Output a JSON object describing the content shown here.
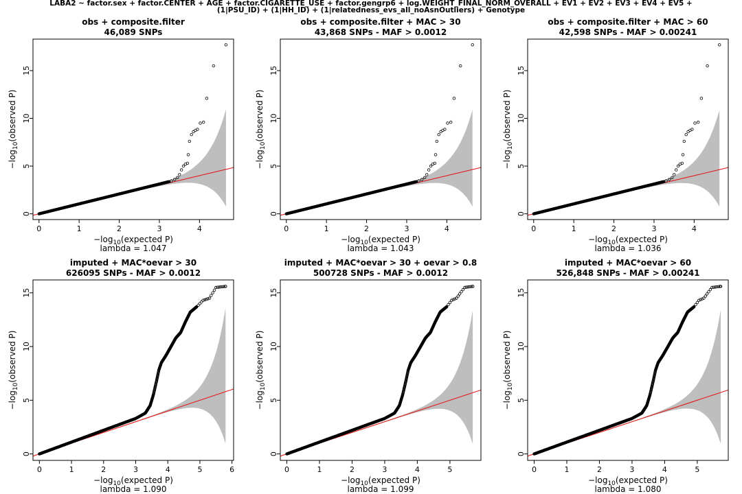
{
  "figure": {
    "title_line1": "LABA2 ~ factor.sex + factor.CENTER + AGE + factor.CIGARETTE_USE + factor.gengrp6 + log.WEIGHT_FINAL_NORM_OVERALL + EV1 + EV2 + EV3 + EV4 + EV5 +",
    "title_line2": "(1|PSU_ID) + (1|HH_ID) + (1|relatedness_evs_all_noAsnOutliers) + Genotype"
  },
  "colors": {
    "points": "#000000",
    "null_line": "#e31a1c",
    "ci_band": "#bebebe",
    "frame": "#000000"
  },
  "chart_data": [
    {
      "type": "scatter",
      "title": "obs + composite.filter",
      "subtitle": "46,089 SNPs",
      "xlabel": "-log10(expected P)",
      "ylabel": "-log10(observed P)",
      "lambda_label": "lambda = 1.047",
      "lambda": 1.047,
      "xlim": [
        -0.15,
        4.85
      ],
      "ylim": [
        -0.6,
        18.3
      ],
      "xticks": [
        0,
        1,
        2,
        3,
        4
      ],
      "yticks": [
        0,
        5,
        10,
        15
      ],
      "x_max": 4.66,
      "tail": [
        [
          3.3,
          3.45
        ],
        [
          3.38,
          3.6
        ],
        [
          3.45,
          3.8
        ],
        [
          3.5,
          4.1
        ],
        [
          3.55,
          4.6
        ],
        [
          3.6,
          5.0
        ],
        [
          3.65,
          5.2
        ],
        [
          3.7,
          5.3
        ],
        [
          3.72,
          6.2
        ],
        [
          3.75,
          7.6
        ],
        [
          3.8,
          8.3
        ],
        [
          3.85,
          8.6
        ],
        [
          3.9,
          8.75
        ],
        [
          3.95,
          8.85
        ],
        [
          4.02,
          9.5
        ],
        [
          4.1,
          9.6
        ],
        [
          4.18,
          12.1
        ],
        [
          4.35,
          15.5
        ],
        [
          4.66,
          17.7
        ]
      ]
    },
    {
      "type": "scatter",
      "title": "obs + composite.filter + MAC > 30",
      "subtitle": "43,868 SNPs - MAF > 0.0012",
      "xlabel": "-log10(expected P)",
      "ylabel": "-log10(observed P)",
      "lambda_label": "lambda = 1.043",
      "lambda": 1.043,
      "xlim": [
        -0.15,
        4.85
      ],
      "ylim": [
        -0.6,
        18.3
      ],
      "xticks": [
        0,
        1,
        2,
        3,
        4
      ],
      "yticks": [
        0,
        5,
        10,
        15
      ],
      "x_max": 4.64,
      "tail": [
        [
          3.3,
          3.45
        ],
        [
          3.38,
          3.6
        ],
        [
          3.45,
          3.8
        ],
        [
          3.5,
          4.1
        ],
        [
          3.55,
          4.6
        ],
        [
          3.6,
          5.0
        ],
        [
          3.65,
          5.2
        ],
        [
          3.7,
          5.3
        ],
        [
          3.72,
          6.2
        ],
        [
          3.75,
          7.6
        ],
        [
          3.8,
          8.3
        ],
        [
          3.85,
          8.6
        ],
        [
          3.9,
          8.75
        ],
        [
          3.95,
          8.85
        ],
        [
          4.02,
          9.5
        ],
        [
          4.1,
          9.6
        ],
        [
          4.18,
          12.1
        ],
        [
          4.34,
          15.5
        ],
        [
          4.64,
          17.7
        ]
      ]
    },
    {
      "type": "scatter",
      "title": "obs + composite.filter + MAC > 60",
      "subtitle": "42,598 SNPs - MAF > 0.00241",
      "xlabel": "-log10(expected P)",
      "ylabel": "-log10(observed P)",
      "lambda_label": "lambda = 1.036",
      "lambda": 1.036,
      "xlim": [
        -0.15,
        4.85
      ],
      "ylim": [
        -0.6,
        18.3
      ],
      "xticks": [
        0,
        1,
        2,
        3,
        4
      ],
      "yticks": [
        0,
        5,
        10,
        15
      ],
      "x_max": 4.63,
      "tail": [
        [
          3.3,
          3.45
        ],
        [
          3.38,
          3.6
        ],
        [
          3.45,
          3.8
        ],
        [
          3.5,
          4.1
        ],
        [
          3.55,
          4.6
        ],
        [
          3.6,
          5.0
        ],
        [
          3.65,
          5.2
        ],
        [
          3.7,
          5.3
        ],
        [
          3.72,
          6.2
        ],
        [
          3.75,
          7.6
        ],
        [
          3.8,
          8.3
        ],
        [
          3.85,
          8.6
        ],
        [
          3.9,
          8.75
        ],
        [
          3.95,
          8.85
        ],
        [
          4.02,
          9.5
        ],
        [
          4.1,
          9.6
        ],
        [
          4.18,
          12.1
        ],
        [
          4.33,
          15.5
        ],
        [
          4.63,
          17.7
        ]
      ]
    },
    {
      "type": "scatter",
      "title": "imputed + MAC*oevar > 30",
      "subtitle": "626095 SNPs - MAF > 0.0012",
      "xlabel": "-log10(expected P)",
      "ylabel": "-log10(observed P)",
      "lambda_label": "lambda = 1.090",
      "lambda": 1.09,
      "xlim": [
        -0.2,
        6.05
      ],
      "ylim": [
        -0.6,
        16.2
      ],
      "xticks": [
        0,
        1,
        2,
        3,
        4,
        5,
        6
      ],
      "yticks": [
        0,
        5,
        10,
        15
      ],
      "x_max": 5.8,
      "curve": [
        [
          0,
          0
        ],
        [
          1,
          1.1
        ],
        [
          2,
          2.2
        ],
        [
          3,
          3.3
        ],
        [
          3.3,
          3.8
        ],
        [
          3.45,
          4.5
        ],
        [
          3.55,
          5.5
        ],
        [
          3.65,
          6.8
        ],
        [
          3.72,
          7.8
        ],
        [
          3.8,
          8.5
        ],
        [
          3.95,
          9.2
        ],
        [
          4.1,
          10.0
        ],
        [
          4.25,
          10.8
        ],
        [
          4.4,
          11.3
        ],
        [
          4.55,
          12.3
        ],
        [
          4.7,
          13.2
        ],
        [
          4.9,
          13.7
        ],
        [
          5.1,
          14.3
        ],
        [
          5.3,
          14.5
        ],
        [
          5.5,
          15.5
        ],
        [
          5.8,
          15.6
        ]
      ]
    },
    {
      "type": "scatter",
      "title": "imputed + MAC*oevar > 30 + oevar > 0.8",
      "subtitle": "500728 SNPs - MAF > 0.0012",
      "xlabel": "-log10(expected P)",
      "ylabel": "-log10(observed P)",
      "lambda_label": "lambda = 1.099",
      "lambda": 1.099,
      "xlim": [
        -0.2,
        5.95
      ],
      "ylim": [
        -0.6,
        16.2
      ],
      "xticks": [
        0,
        1,
        2,
        3,
        4,
        5
      ],
      "yticks": [
        0,
        5,
        10,
        15
      ],
      "x_max": 5.7,
      "curve": [
        [
          0,
          0
        ],
        [
          1,
          1.1
        ],
        [
          2,
          2.2
        ],
        [
          3,
          3.3
        ],
        [
          3.3,
          3.8
        ],
        [
          3.45,
          4.5
        ],
        [
          3.55,
          5.5
        ],
        [
          3.65,
          6.8
        ],
        [
          3.72,
          7.8
        ],
        [
          3.8,
          8.5
        ],
        [
          3.95,
          9.2
        ],
        [
          4.1,
          10.0
        ],
        [
          4.25,
          10.8
        ],
        [
          4.4,
          11.3
        ],
        [
          4.55,
          12.3
        ],
        [
          4.7,
          13.2
        ],
        [
          4.9,
          13.7
        ],
        [
          5.05,
          14.3
        ],
        [
          5.2,
          14.5
        ],
        [
          5.45,
          15.5
        ],
        [
          5.7,
          15.6
        ]
      ]
    },
    {
      "type": "scatter",
      "title": "imputed + MAC*oevar > 60",
      "subtitle": "526,848 SNPs - MAF > 0.00241",
      "xlabel": "-log10(expected P)",
      "ylabel": "-log10(observed P)",
      "lambda_label": "lambda = 1.080",
      "lambda": 1.08,
      "xlim": [
        -0.2,
        5.95
      ],
      "ylim": [
        -0.6,
        16.2
      ],
      "xticks": [
        0,
        1,
        2,
        3,
        4,
        5
      ],
      "yticks": [
        0,
        5,
        10,
        15
      ],
      "x_max": 5.72,
      "curve": [
        [
          0,
          0
        ],
        [
          1,
          1.1
        ],
        [
          2,
          2.2
        ],
        [
          3,
          3.3
        ],
        [
          3.3,
          3.8
        ],
        [
          3.45,
          4.5
        ],
        [
          3.55,
          5.5
        ],
        [
          3.65,
          6.8
        ],
        [
          3.72,
          7.8
        ],
        [
          3.8,
          8.5
        ],
        [
          3.95,
          9.2
        ],
        [
          4.1,
          10.0
        ],
        [
          4.25,
          10.8
        ],
        [
          4.4,
          11.3
        ],
        [
          4.55,
          12.3
        ],
        [
          4.7,
          13.2
        ],
        [
          4.9,
          13.7
        ],
        [
          5.05,
          14.3
        ],
        [
          5.2,
          14.5
        ],
        [
          5.45,
          15.5
        ],
        [
          5.72,
          15.6
        ]
      ]
    }
  ]
}
